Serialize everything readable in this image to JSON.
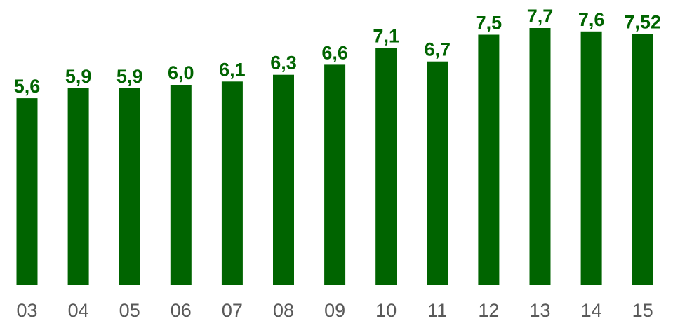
{
  "chart_data": {
    "type": "bar",
    "categories": [
      "03",
      "04",
      "05",
      "06",
      "07",
      "08",
      "09",
      "10",
      "11",
      "12",
      "13",
      "14",
      "15"
    ],
    "values": [
      5.6,
      5.9,
      5.9,
      6.0,
      6.1,
      6.3,
      6.6,
      7.1,
      6.7,
      7.5,
      7.7,
      7.6,
      7.52
    ],
    "value_labels": [
      "5,6",
      "5,9",
      "5,9",
      "6,0",
      "6,1",
      "6,3",
      "6,6",
      "7,1",
      "6,7",
      "7,5",
      "7,7",
      "7,6",
      "7,52"
    ],
    "title": "",
    "xlabel": "",
    "ylabel": "",
    "ylim": [
      0,
      7.7
    ],
    "grid": false,
    "legend": "none",
    "colors": {
      "bar": "#006400",
      "value_label": "#006400",
      "tick_label": "#595959"
    }
  }
}
